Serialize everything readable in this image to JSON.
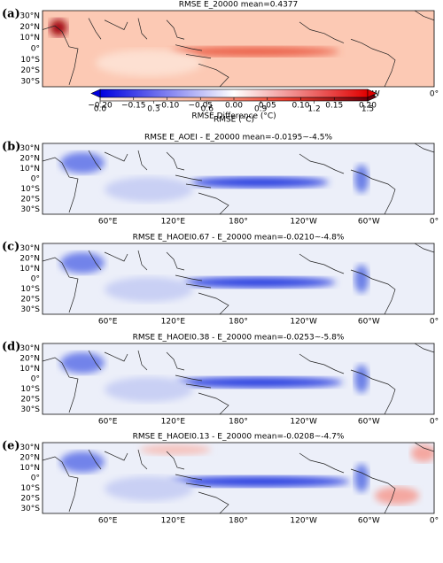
{
  "panels": [
    {
      "label": "(a)",
      "title": "RMSE E_20000 mean=0.4377"
    },
    {
      "label": "(b)",
      "title": "RMSE E_AOEI - E_20000 mean=-0.0195~-4.5%"
    },
    {
      "label": "(c)",
      "title": "RMSE E_HAOEI0.67 - E_20000 mean=-0.0210~-4.8%"
    },
    {
      "label": "(d)",
      "title": "RMSE E_HAOEI0.38 - E_20000 mean=-0.0253~-5.8%"
    },
    {
      "label": "(e)",
      "title": "RMSE E_HAOEI0.13 - E_20000 mean=-0.0208~-4.7%"
    }
  ],
  "lat_labels": [
    "30°N",
    "20°N",
    "10°N",
    "0°",
    "10°S",
    "20°S",
    "30°S"
  ],
  "lon_labels": [
    "60°E",
    "120°E",
    "180°",
    "120°W",
    "60°W",
    "0°"
  ],
  "colorbars": [
    {
      "label": "RMSE (°C)",
      "lim": [
        0,
        1.5
      ],
      "ticks": [
        {
          "value": 0,
          "label": "0.0"
        },
        0.3,
        0.6,
        0.9,
        1.2,
        1.5
      ]
    },
    {
      "label": "RMSE Difference (°C)",
      "lim": [
        -0.2,
        0.2
      ],
      "ticks": [
        {
          "value": -0.2,
          "label": "−0.20"
        },
        {
          "value": -0.15,
          "label": "−0.15"
        },
        {
          "value": -0.1,
          "label": "−0.10"
        },
        {
          "value": -0.05,
          "label": "−0.05"
        },
        {
          "value": 0,
          "label": "0.00"
        },
        {
          "value": 0.05,
          "label": "0.05"
        },
        {
          "value": 0.1,
          "label": "0.10"
        },
        {
          "value": 0.15,
          "label": "0.15"
        },
        {
          "value": 0.2,
          "label": "0.20"
        }
      ]
    }
  ]
}
